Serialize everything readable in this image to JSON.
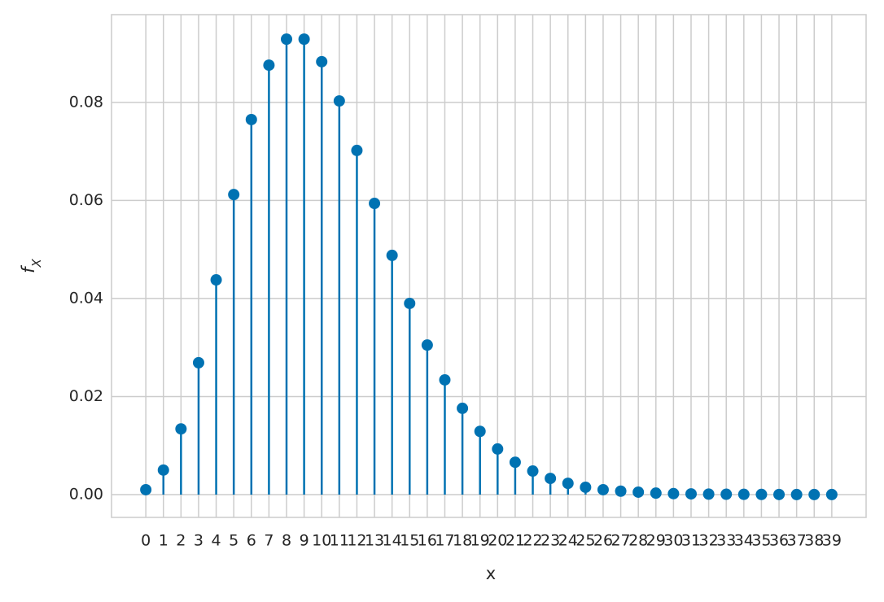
{
  "chart_data": {
    "type": "stem",
    "xlabel": "x",
    "ylabel_base": "f",
    "ylabel_sub": "X",
    "x": [
      0,
      1,
      2,
      3,
      4,
      5,
      6,
      7,
      8,
      9,
      10,
      11,
      12,
      13,
      14,
      15,
      16,
      17,
      18,
      19,
      20,
      21,
      22,
      23,
      24,
      25,
      26,
      27,
      28,
      29,
      30,
      31,
      32,
      33,
      34,
      35,
      36,
      37,
      38,
      39
    ],
    "values": [
      0.001,
      0.005,
      0.0134,
      0.0269,
      0.0438,
      0.0612,
      0.0765,
      0.0876,
      0.0929,
      0.0929,
      0.0883,
      0.0803,
      0.0702,
      0.0594,
      0.0488,
      0.039,
      0.0305,
      0.0234,
      0.0176,
      0.0129,
      0.0093,
      0.0066,
      0.0048,
      0.0033,
      0.0023,
      0.0015,
      0.001,
      0.0007,
      0.0005,
      0.0003,
      0.0002,
      0.00015,
      0.0001,
      7e-05,
      5e-05,
      3e-05,
      2e-05,
      1e-05,
      1e-05,
      1e-05
    ],
    "color": "#0072b2",
    "xlim": [
      -1.95,
      40.95
    ],
    "xticks": [
      0,
      1,
      2,
      3,
      4,
      5,
      6,
      7,
      8,
      9,
      10,
      11,
      12,
      13,
      14,
      15,
      16,
      17,
      18,
      19,
      20,
      21,
      22,
      23,
      24,
      25,
      26,
      27,
      28,
      29,
      30,
      31,
      32,
      33,
      34,
      35,
      36,
      37,
      38,
      39
    ],
    "ylim": [
      -0.00465,
      0.0979
    ],
    "yticks": [
      {
        "value": 0,
        "label": "0.00"
      },
      {
        "value": 0.02,
        "label": "0.02"
      },
      {
        "value": 0.04,
        "label": "0.04"
      },
      {
        "value": 0.06,
        "label": "0.06"
      },
      {
        "value": 0.08,
        "label": "0.08"
      }
    ],
    "grid": true
  }
}
